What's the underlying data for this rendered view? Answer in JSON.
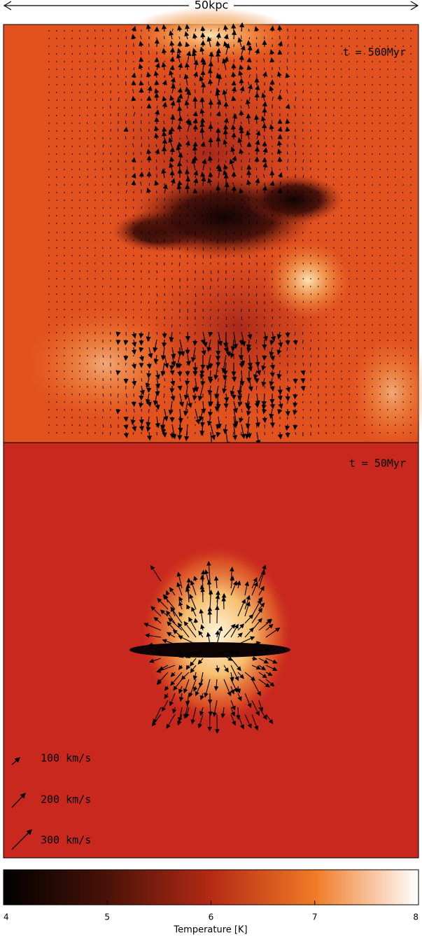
{
  "scale_bar": {
    "label": "50kpc"
  },
  "panels": [
    {
      "label": "t = 500Myr"
    },
    {
      "label": "t = 50Myr"
    }
  ],
  "velocity_legend": [
    {
      "label": "100 km/s"
    },
    {
      "label": "200 km/s"
    },
    {
      "label": "300 km/s"
    }
  ],
  "colorbar": {
    "lim": [
      4,
      8
    ],
    "ticks": [
      4,
      5,
      6,
      7,
      8
    ],
    "label": "Temperature [K]"
  }
}
